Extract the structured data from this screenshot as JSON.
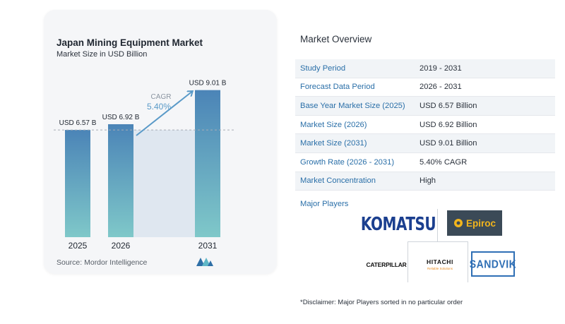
{
  "chart_data": {
    "type": "bar",
    "title": "Japan Mining Equipment Market",
    "subtitle": "Market Size in USD Billion",
    "categories": [
      "2025",
      "2026",
      "2031"
    ],
    "values": [
      6.57,
      6.92,
      9.01
    ],
    "data_labels": [
      "USD 6.57 B",
      "USD 6.92 B",
      "USD 9.01 B"
    ],
    "cagr_label": "CAGR",
    "cagr_value": "5.40%",
    "ylim": [
      0,
      9.6
    ],
    "reference_line_value": 6.57,
    "colors": {
      "bar_top": "#4b84b7",
      "bar_bottom": "#7fc8c9",
      "projection_area": "#dfe7f0",
      "arrow": "#5a9ac8",
      "cagr_label": "#8a94a0",
      "cagr_value": "#5a9ac8"
    },
    "source": "Source:  Mordor Intelligence",
    "xlabel": "",
    "ylabel": "",
    "grid": false
  },
  "overview": {
    "title": "Market Overview",
    "rows": [
      {
        "label": "Study Period",
        "value": "2019 - 2031"
      },
      {
        "label": "Forecast Data Period",
        "value": "2026 - 2031"
      },
      {
        "label": "Base Year Market Size (2025)",
        "value": "USD 6.57 Billion"
      },
      {
        "label": "Market Size (2026)",
        "value": "USD 6.92 Billion"
      },
      {
        "label": "Market Size (2031)",
        "value": "USD 9.01 Billion"
      },
      {
        "label": "Growth Rate (2026 - 2031)",
        "value": "5.40% CAGR"
      },
      {
        "label": "Market Concentration",
        "value": "High"
      }
    ],
    "major_players_label": "Major Players",
    "players": [
      "KOMATSU",
      "Epiroc",
      "CATERPILLAR",
      "HITACHI",
      "SANDVIK"
    ],
    "hitachi_sub": "Reliable Solutions",
    "disclaimer": "*Disclaimer: Major Players sorted in no particular order"
  },
  "source_logo_icon": "mordor-intelligence-logo"
}
